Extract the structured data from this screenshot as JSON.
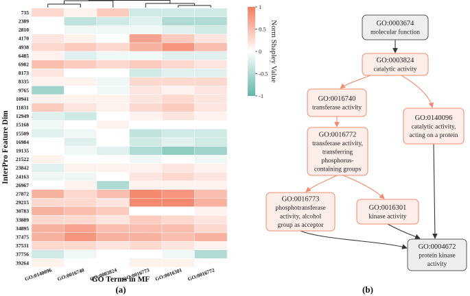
{
  "panel_a": {
    "caption": "(a)",
    "y_axis_label": "InterPro Feature Dim",
    "x_axis_label": "GO Terms in MF",
    "colorbar": {
      "title": "Norm Shapley Value",
      "ticks": [
        "1",
        "0.5",
        "0",
        "-0.5",
        "-1"
      ],
      "pos_color": "#f47c5f",
      "neg_color": "#5fb6a8",
      "mid_color": "#ffffff"
    }
  },
  "chart_data": {
    "type": "heatmap",
    "title": "",
    "xlabel": "GO Terms in MF",
    "ylabel": "InterPro Feature Dim",
    "value_range": [
      -1,
      1
    ],
    "columns": [
      "GO:0140096",
      "GO:0016740",
      "GO:0003824",
      "GO:0016773",
      "GO:0016301",
      "GO:0016772"
    ],
    "rows": [
      "735",
      "2389",
      "2810",
      "4170",
      "4938",
      "6485",
      "6982",
      "8173",
      "8335",
      "9765",
      "10941",
      "11831",
      "12949",
      "15168",
      "15509",
      "16984",
      "19135",
      "21522",
      "23842",
      "24163",
      "26967",
      "27872",
      "29215",
      "30783",
      "33889",
      "34895",
      "37475",
      "37531",
      "37756",
      "39264"
    ],
    "values": [
      [
        0.3,
        0.1,
        0.4,
        -0.3,
        -0.3,
        -0.3
      ],
      [
        0.0,
        -0.4,
        -0.3,
        -0.2,
        -0.5,
        -0.5
      ],
      [
        0.0,
        -0.1,
        -0.1,
        -0.1,
        -0.2,
        -0.3
      ],
      [
        0.2,
        0.1,
        0.0,
        0.7,
        0.4,
        0.2
      ],
      [
        0.3,
        0.4,
        0.3,
        0.6,
        0.8,
        0.5
      ],
      [
        0.1,
        -0.2,
        -0.1,
        -0.1,
        -0.2,
        -0.2
      ],
      [
        0.5,
        0.4,
        0.3,
        0.4,
        0.3,
        0.2
      ],
      [
        0.2,
        0.0,
        0.0,
        -0.3,
        -0.2,
        -0.2
      ],
      [
        0.1,
        0.1,
        -0.1,
        0.3,
        0.3,
        0.3
      ],
      [
        -0.6,
        0.0,
        -0.1,
        0.2,
        0.1,
        0.2
      ],
      [
        0.1,
        0.1,
        0.1,
        0.2,
        0.3,
        0.2
      ],
      [
        0.4,
        0.2,
        0.1,
        0.3,
        0.4,
        0.2
      ],
      [
        -0.2,
        -0.3,
        0.0,
        0.1,
        0.2,
        0.1
      ],
      [
        -0.1,
        0.0,
        0.1,
        0.0,
        0.0,
        0.0
      ],
      [
        -0.2,
        -0.1,
        0.0,
        -0.4,
        -0.3,
        -0.3
      ],
      [
        0.0,
        -0.2,
        0.0,
        -0.3,
        -0.2,
        -0.3
      ],
      [
        0.0,
        -0.1,
        -0.2,
        -0.5,
        -0.7,
        -0.6
      ],
      [
        0.1,
        0.0,
        0.0,
        -0.1,
        0.0,
        -0.1
      ],
      [
        -0.2,
        0.1,
        0.1,
        0.1,
        0.2,
        0.1
      ],
      [
        -0.1,
        -0.1,
        0.0,
        0.2,
        0.3,
        0.2
      ],
      [
        0.0,
        0.1,
        -0.5,
        0.1,
        0.1,
        0.1
      ],
      [
        0.6,
        0.3,
        0.5,
        0.9,
        0.8,
        0.5
      ],
      [
        0.3,
        0.3,
        0.2,
        0.9,
        0.9,
        0.6
      ],
      [
        0.6,
        0.5,
        0.4,
        0.0,
        0.0,
        0.1
      ],
      [
        0.3,
        0.3,
        0.2,
        0.4,
        0.3,
        0.2
      ],
      [
        0.6,
        0.7,
        0.5,
        0.5,
        0.5,
        0.3
      ],
      [
        0.6,
        0.8,
        0.6,
        0.6,
        0.5,
        0.6
      ],
      [
        0.3,
        0.3,
        0.2,
        0.3,
        0.2,
        0.1
      ],
      [
        -0.3,
        -0.1,
        0.0,
        0.0,
        -0.1,
        -0.5
      ],
      [
        0.1,
        0.0,
        0.0,
        0.1,
        0.1,
        0.0
      ]
    ]
  },
  "panel_b": {
    "caption": "(b)",
    "nodes": [
      {
        "key": "n3674",
        "id": "GO:0003674",
        "lines": [
          "molecular function"
        ],
        "style": "gray"
      },
      {
        "key": "n3824",
        "id": "GO:0003824",
        "lines": [
          "catalytic activity"
        ],
        "style": "red"
      },
      {
        "key": "n16740",
        "id": "GO:0016740",
        "lines": [
          "transferase activity"
        ],
        "style": "red"
      },
      {
        "key": "n140096",
        "id": "GO:0140096",
        "lines": [
          "catalytic activity,",
          "acting on a protein"
        ],
        "style": "red"
      },
      {
        "key": "n16772",
        "id": "GO:0016772",
        "lines": [
          "transferase activity,",
          "transferring",
          "phosphorus-",
          "containing groups"
        ],
        "style": "red"
      },
      {
        "key": "n16773",
        "id": "GO:0016773",
        "lines": [
          "phosphotransferase",
          "activity, alcohol",
          "group as acceptor"
        ],
        "style": "red"
      },
      {
        "key": "n16301",
        "id": "GO:0016301",
        "lines": [
          "kinase activity"
        ],
        "style": "red"
      },
      {
        "key": "n4672",
        "id": "GO:0004672",
        "lines": [
          "protein kinase",
          "activity"
        ],
        "style": "gray"
      }
    ],
    "colors": {
      "gray_fill": "#eeeeee",
      "gray_stroke": "#555555",
      "red_fill": "#fdeee9",
      "red_stroke": "#f08a6c",
      "red_edge": "#f08a6c",
      "dark_edge": "#333333"
    }
  }
}
